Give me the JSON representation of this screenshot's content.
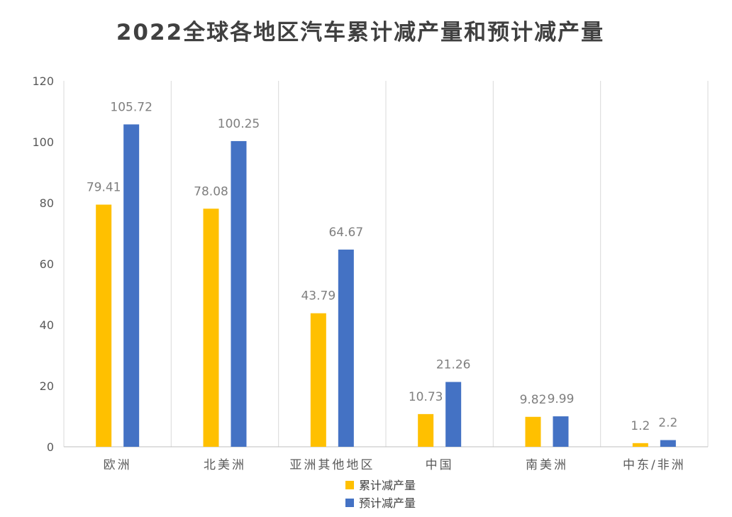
{
  "chart_data": {
    "type": "bar",
    "title": "2022全球各地区汽车累计减产量和预计减产量",
    "xlabel": "",
    "ylabel": "",
    "categories": [
      "欧洲",
      "北美洲",
      "亚洲其他地区",
      "中国",
      "南美洲",
      "中东/非洲"
    ],
    "series": [
      {
        "name": "累计减产量",
        "color": "#FFC000",
        "values": [
          79.41,
          78.08,
          43.79,
          10.73,
          9.82,
          1.2
        ]
      },
      {
        "name": "预计减产量",
        "color": "#4472C4",
        "values": [
          105.72,
          100.25,
          64.67,
          21.26,
          9.99,
          2.2
        ]
      }
    ],
    "data_labels": [
      [
        "79.41",
        "78.08",
        "43.79",
        "10.73",
        "9.82",
        "1.2"
      ],
      [
        "105.72",
        "100.25",
        "64.67",
        "21.26",
        "9.99",
        "2.2"
      ]
    ],
    "y_ticks": [
      0,
      20,
      40,
      60,
      80,
      100,
      120
    ],
    "ylim": [
      0,
      120
    ],
    "grid": "vertical category separators",
    "legend_position": "bottom"
  }
}
